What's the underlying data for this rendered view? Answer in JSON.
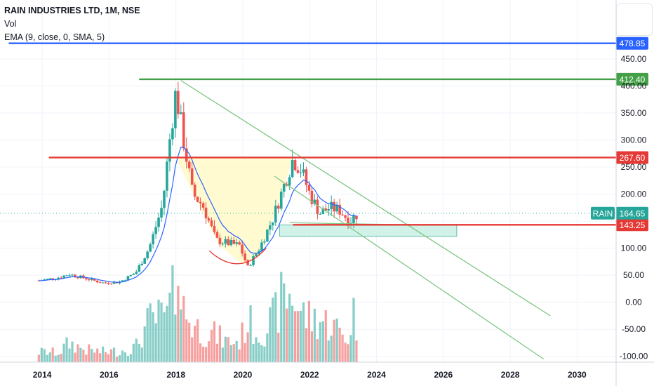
{
  "header": {
    "symbol_line": "RAIN INDUSTRIES LTD, 1M, NSE",
    "vol_label": "Vol",
    "ema_label": "EMA (9, close, 0, SMA, 5)"
  },
  "colors": {
    "up": "#26a69a",
    "down": "#ef5350",
    "ema": "#2962ff",
    "blue_line": "#2962ff",
    "green_line": "#43a047",
    "red_line": "#e53935",
    "trend": "#81c784",
    "cup_fill": "#fff9c4",
    "box_fill": "#c8f0e6",
    "rain_tag": "#26a69a"
  },
  "chart_data": {
    "type": "candlestick",
    "title": "RAIN INDUSTRIES LTD, 1M, NSE",
    "ylim": [
      -125,
      520
    ],
    "xlim": [
      2013.2,
      2031.0
    ],
    "y_ticks": [
      "450.00",
      "400.00",
      "350.00",
      "300.00",
      "250.00",
      "200.00",
      "150.00",
      "100.00",
      "50.00",
      "0.00",
      "-50.00",
      "-100.00"
    ],
    "x_ticks": [
      "2014",
      "2016",
      "2018",
      "2020",
      "2022",
      "2024",
      "2026",
      "2028",
      "2030"
    ],
    "price_levels": [
      {
        "label": "478.85",
        "value": 478.85,
        "color_key": "blue_line",
        "x_start": 2013.0
      },
      {
        "label": "412.40",
        "value": 412.4,
        "color_key": "green_line",
        "x_start": 2016.9
      },
      {
        "label": "267.60",
        "value": 267.6,
        "color_key": "red_line",
        "x_start": 2014.2
      },
      {
        "label": "143.25",
        "value": 143.25,
        "color_key": "red_line",
        "x_start": 2021.5
      }
    ],
    "current_price": {
      "symbol": "RAIN",
      "label": "164.65",
      "value": 164.65
    },
    "trendlines": [
      {
        "from": [
          2018.15,
          410
        ],
        "to": [
          2029.2,
          -25
        ]
      },
      {
        "from": [
          2020.95,
          233
        ],
        "to": [
          2029.0,
          -105
        ]
      },
      {
        "from": [
          2021.4,
          147
        ],
        "to": [
          2025.3,
          143
        ]
      }
    ],
    "demand_zone": {
      "x0": 2021.1,
      "x1": 2026.4,
      "y_low": 122,
      "y_high": 143
    },
    "cup_region": [
      [
        2018.0,
        267
      ],
      [
        2018.6,
        190
      ],
      [
        2019.3,
        105
      ],
      [
        2020.0,
        70
      ],
      [
        2020.5,
        85
      ],
      [
        2021.0,
        170
      ],
      [
        2021.5,
        267
      ]
    ],
    "anchors": [
      [
        2013.9,
        40,
        15
      ],
      [
        2014.5,
        46,
        14
      ],
      [
        2014.8,
        52,
        28
      ],
      [
        2015.3,
        44,
        18
      ],
      [
        2015.8,
        36,
        15
      ],
      [
        2016.3,
        37,
        16
      ],
      [
        2016.8,
        55,
        22
      ],
      [
        2017.2,
        100,
        60
      ],
      [
        2017.6,
        180,
        65
      ],
      [
        2017.85,
        320,
        85
      ],
      [
        2018.0,
        390,
        110
      ],
      [
        2018.2,
        310,
        80
      ],
      [
        2018.5,
        200,
        55
      ],
      [
        2018.8,
        180,
        45
      ],
      [
        2019.2,
        115,
        40
      ],
      [
        2019.5,
        110,
        30
      ],
      [
        2019.9,
        105,
        30
      ],
      [
        2020.15,
        65,
        60
      ],
      [
        2020.5,
        100,
        40
      ],
      [
        2020.9,
        155,
        62
      ],
      [
        2021.2,
        210,
        95
      ],
      [
        2021.5,
        265,
        98
      ],
      [
        2021.75,
        245,
        72
      ],
      [
        2022.0,
        200,
        64
      ],
      [
        2022.3,
        165,
        62
      ],
      [
        2022.6,
        175,
        56
      ],
      [
        2022.9,
        170,
        46
      ],
      [
        2023.2,
        150,
        34
      ],
      [
        2023.45,
        165,
        20
      ]
    ],
    "vol_peaks": [
      {
        "t": 2017.7,
        "v": 70
      },
      {
        "t": 2018.1,
        "v": 95
      },
      {
        "t": 2021.2,
        "v": 98
      },
      {
        "t": 2021.4,
        "v": 85
      },
      {
        "t": 2023.3,
        "v": 80
      }
    ]
  }
}
